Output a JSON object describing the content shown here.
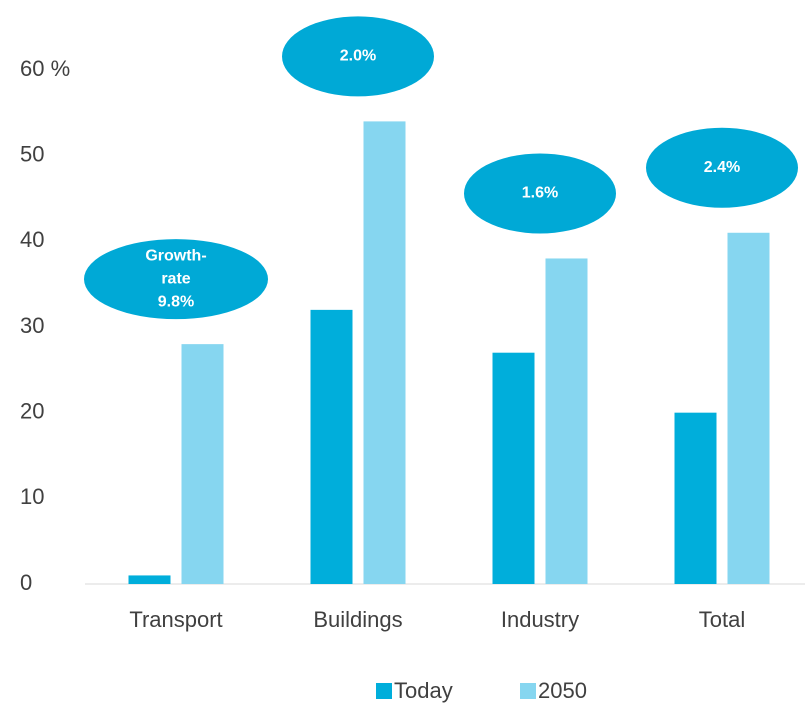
{
  "chart_data": {
    "type": "bar",
    "categories": [
      "Transport",
      "Buildings",
      "Industry",
      "Total"
    ],
    "series": [
      {
        "name": "Today",
        "color": "#00aedb",
        "values": [
          1,
          32,
          27,
          20
        ]
      },
      {
        "name": "2050",
        "color": "#86d6f0",
        "values": [
          28,
          54,
          38,
          41
        ]
      }
    ],
    "annotations": [
      [
        "Growth-",
        "rate",
        "9.8%"
      ],
      [
        "2.0%"
      ],
      [
        "1.6%"
      ],
      [
        "2.4%"
      ]
    ],
    "annotation_color": "#00a9d6",
    "ylim": [
      0,
      60
    ],
    "yticks": [
      0,
      10,
      20,
      30,
      40,
      50,
      {
        "value": 60,
        "label": "60 %"
      }
    ],
    "grid": false,
    "legend": "bottom"
  }
}
